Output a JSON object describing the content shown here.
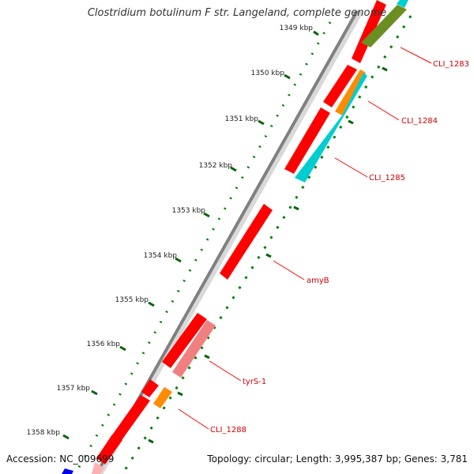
{
  "title": "Clostridium botulinum F str. Langeland, complete genome",
  "footer": {
    "accession": "Accession: NC_009699",
    "topology": "Topology: circular; Length: 3,995,387 bp; Genes: 3,781"
  },
  "colors": {
    "backbone": "#808080",
    "cds": "#ff0000",
    "label_line": "#ff0000",
    "tick_major": "#006400",
    "tick_minor": "#008000"
  },
  "kbp_ticks": [
    "1349 kbp",
    "1350 kbp",
    "1351 kbp",
    "1352 kbp",
    "1353 kbp",
    "1354 kbp",
    "1355 kbp",
    "1356 kbp",
    "1357 kbp",
    "1358 kbp"
  ],
  "gene_labels": [
    "CLI_1283",
    "CLI_1284",
    "CLI_1285",
    "amyB",
    "tyrS-1",
    "CLI_1288"
  ]
}
